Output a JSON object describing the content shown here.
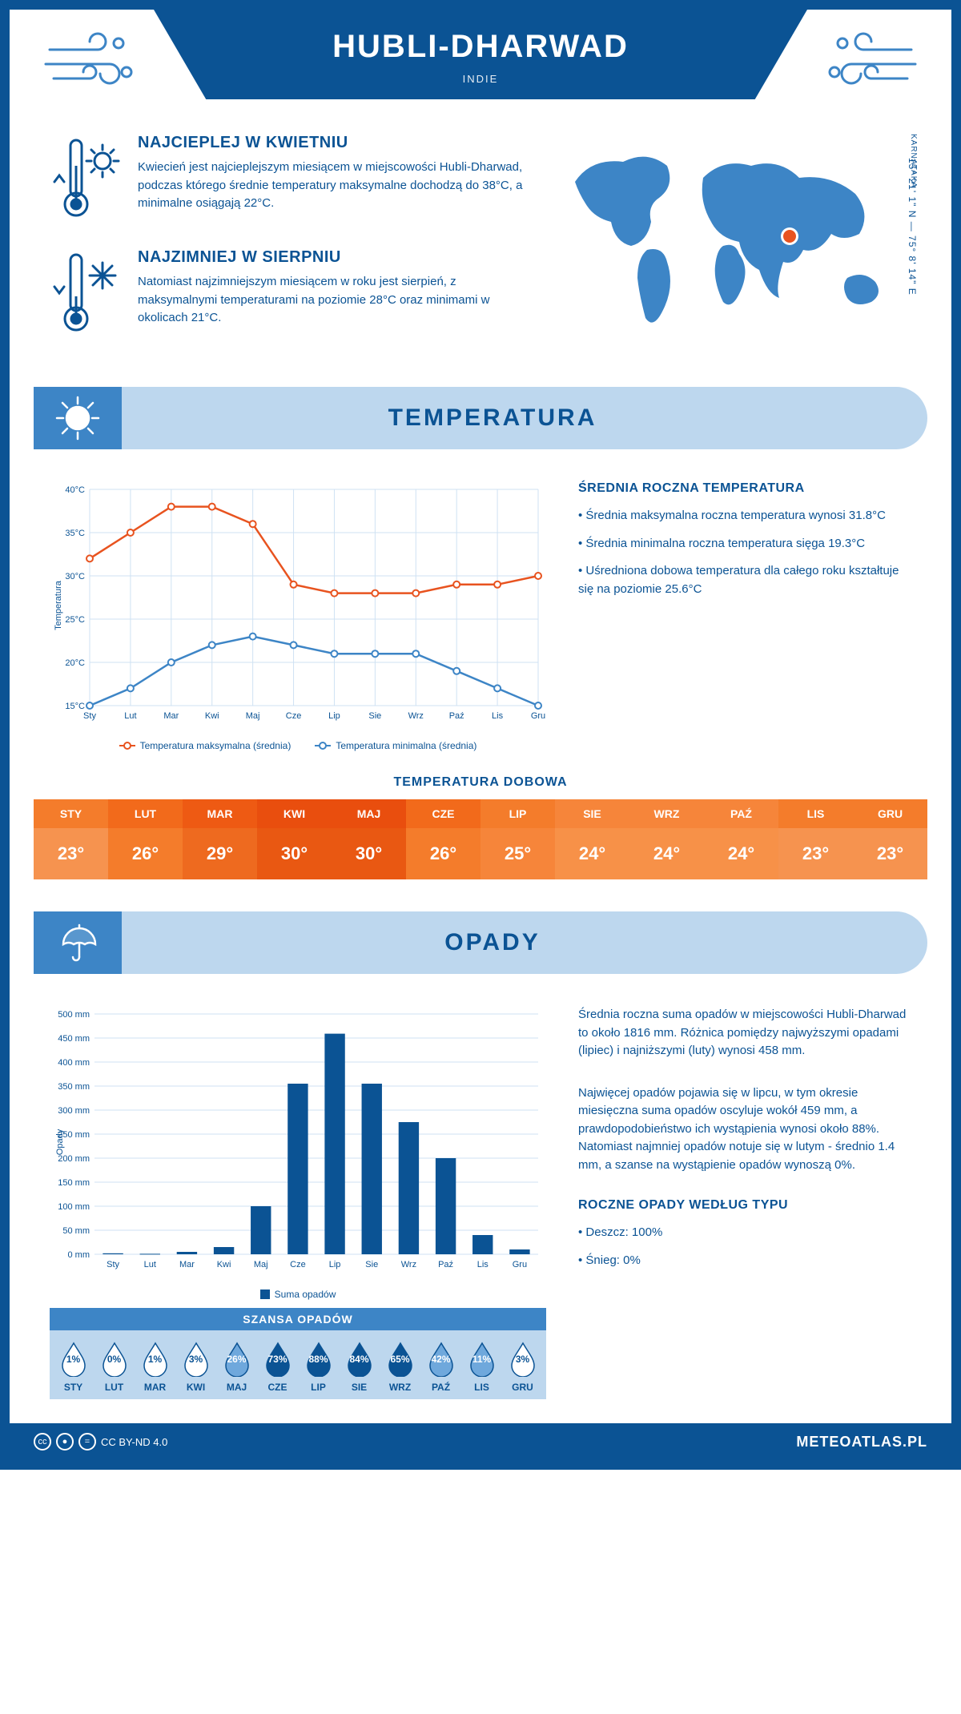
{
  "header": {
    "city": "HUBLI-DHARWAD",
    "country": "INDIE",
    "region": "KARNATAKA",
    "coords": "15° 21' 1\" N — 75° 8' 14\" E"
  },
  "facts": {
    "warmest": {
      "title": "NAJCIEPLEJ W KWIETNIU",
      "text": "Kwiecień jest najcieplejszym miesiącem w miejscowości Hubli-Dharwad, podczas którego średnie temperatury maksymalne dochodzą do 38°C, a minimalne osiągają 22°C."
    },
    "coldest": {
      "title": "NAJZIMNIEJ W SIERPNIU",
      "text": "Natomiast najzimniejszym miesiącem w roku jest sierpień, z maksymalnymi temperaturami na poziomie 28°C oraz minimami w okolicach 21°C."
    }
  },
  "sections": {
    "temperature": "TEMPERATURA",
    "precipitation": "OPADY"
  },
  "temp_chart": {
    "type": "line",
    "months": [
      "Sty",
      "Lut",
      "Mar",
      "Kwi",
      "Maj",
      "Cze",
      "Lip",
      "Sie",
      "Wrz",
      "Paź",
      "Lis",
      "Gru"
    ],
    "ylabel": "Temperatura",
    "ylim": [
      15,
      40
    ],
    "ytick_step": 5,
    "ytick_labels": [
      "15°C",
      "20°C",
      "25°C",
      "30°C",
      "35°C",
      "40°C"
    ],
    "series": [
      {
        "name": "Temperatura maksymalna (średnia)",
        "color": "#e8531f",
        "values": [
          32,
          35,
          38,
          38,
          36,
          29,
          28,
          28,
          28,
          29,
          29,
          30
        ]
      },
      {
        "name": "Temperatura minimalna (średnia)",
        "color": "#3d85c6",
        "values": [
          15,
          17,
          20,
          22,
          23,
          22,
          21,
          21,
          21,
          19,
          17,
          15
        ]
      }
    ],
    "background_color": "#ffffff",
    "grid_color": "#cfe2f3",
    "label_fontsize": 11
  },
  "temp_info": {
    "title": "ŚREDNIA ROCZNA TEMPERATURA",
    "bullets": [
      "• Średnia maksymalna roczna temperatura wynosi 31.8°C",
      "• Średnia minimalna roczna temperatura sięga 19.3°C",
      "• Uśredniona dobowa temperatura dla całego roku kształtuje się na poziomie 25.6°C"
    ]
  },
  "daily_temp": {
    "title": "TEMPERATURA DOBOWA",
    "months": [
      "STY",
      "LUT",
      "MAR",
      "KWI",
      "MAJ",
      "CZE",
      "LIP",
      "SIE",
      "WRZ",
      "PAŹ",
      "LIS",
      "GRU"
    ],
    "values": [
      "23°",
      "26°",
      "29°",
      "30°",
      "30°",
      "26°",
      "25°",
      "24°",
      "24°",
      "24°",
      "23°",
      "23°"
    ],
    "header_colors": [
      "#f47c2b",
      "#f26a1b",
      "#ee5a13",
      "#e94e0e",
      "#e94e0e",
      "#f26a1b",
      "#f47c2b",
      "#f6853a",
      "#f6853a",
      "#f6853a",
      "#f47c2b",
      "#f47c2b"
    ],
    "value_colors": [
      "#f6934f",
      "#f47c2b",
      "#ee6a1f",
      "#e95812",
      "#e95812",
      "#f47c2b",
      "#f6853a",
      "#f79148",
      "#f79148",
      "#f79148",
      "#f6934f",
      "#f6934f"
    ]
  },
  "precip_chart": {
    "type": "bar",
    "months": [
      "Sty",
      "Lut",
      "Mar",
      "Kwi",
      "Maj",
      "Cze",
      "Lip",
      "Sie",
      "Wrz",
      "Paź",
      "Lis",
      "Gru"
    ],
    "ylabel": "Opady",
    "ylim": [
      0,
      500
    ],
    "ytick_step": 50,
    "values": [
      2,
      1,
      5,
      15,
      100,
      355,
      459,
      355,
      275,
      200,
      40,
      10
    ],
    "bar_color": "#0b5394",
    "grid_color": "#cfe2f3",
    "legend": "Suma opadów"
  },
  "precip_info": {
    "p1": "Średnia roczna suma opadów w miejscowości Hubli-Dharwad to około 1816 mm. Różnica pomiędzy najwyższymi opadami (lipiec) i najniższymi (luty) wynosi 458 mm.",
    "p2": "Najwięcej opadów pojawia się w lipcu, w tym okresie miesięczna suma opadów oscyluje wokół 459 mm, a prawdopodobieństwo ich wystąpienia wynosi około 88%. Natomiast najmniej opadów notuje się w lutym - średnio 1.4 mm, a szanse na wystąpienie opadów wynoszą 0%.",
    "type_title": "ROCZNE OPADY WEDŁUG TYPU",
    "type_bullets": [
      "• Deszcz: 100%",
      "• Śnieg: 0%"
    ]
  },
  "precip_chance": {
    "title": "SZANSA OPADÓW",
    "months": [
      "STY",
      "LUT",
      "MAR",
      "KWI",
      "MAJ",
      "CZE",
      "LIP",
      "SIE",
      "WRZ",
      "PAŹ",
      "LIS",
      "GRU"
    ],
    "values": [
      "1%",
      "0%",
      "1%",
      "3%",
      "26%",
      "73%",
      "88%",
      "84%",
      "65%",
      "42%",
      "11%",
      "3%"
    ],
    "fill_levels": [
      1,
      0,
      1,
      3,
      26,
      73,
      88,
      84,
      65,
      42,
      11,
      3
    ],
    "low_color": "#ffffff",
    "med_color": "#6fa8dc",
    "high_color": "#0b5394"
  },
  "footer": {
    "license": "CC BY-ND 4.0",
    "site": "METEOATLAS.PL"
  }
}
